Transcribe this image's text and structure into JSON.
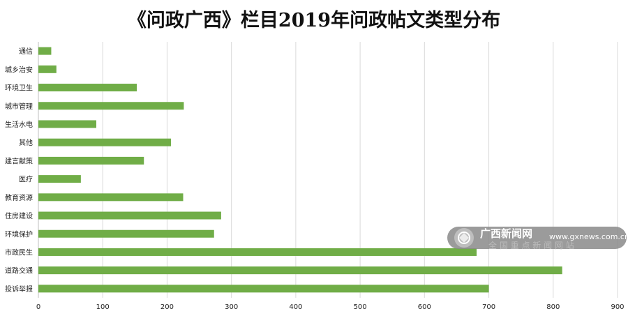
{
  "chart_data": {
    "type": "bar",
    "orientation": "horizontal",
    "title": "《问政广西》栏目2019年问政帖文类型分布",
    "xlabel": "",
    "ylabel": "",
    "categories": [
      "通信",
      "城乡治安",
      "环境卫生",
      "城市管理",
      "生活水电",
      "其他",
      "建言献策",
      "医疗",
      "教育资源",
      "住房建设",
      "环境保护",
      "市政民生",
      "道路交通",
      "投诉举报"
    ],
    "values": [
      20,
      28,
      153,
      226,
      90,
      206,
      164,
      66,
      225,
      284,
      273,
      681,
      814,
      700
    ],
    "xlim": [
      0,
      900
    ],
    "xticks": [
      0,
      100,
      200,
      300,
      400,
      500,
      600,
      700,
      800,
      900
    ],
    "grid": "vertical",
    "legend": "none"
  },
  "colors": {
    "bar": "#70ad47",
    "grid": "#d9d9d9",
    "axis": "#bfbfbf"
  },
  "watermark": {
    "name": "广西新闻网",
    "url": "www.gxnews.com.cn",
    "tagline": "全 国 重 点 新 闻 网 站",
    "logo_icon": "gxnews-logo-icon"
  }
}
